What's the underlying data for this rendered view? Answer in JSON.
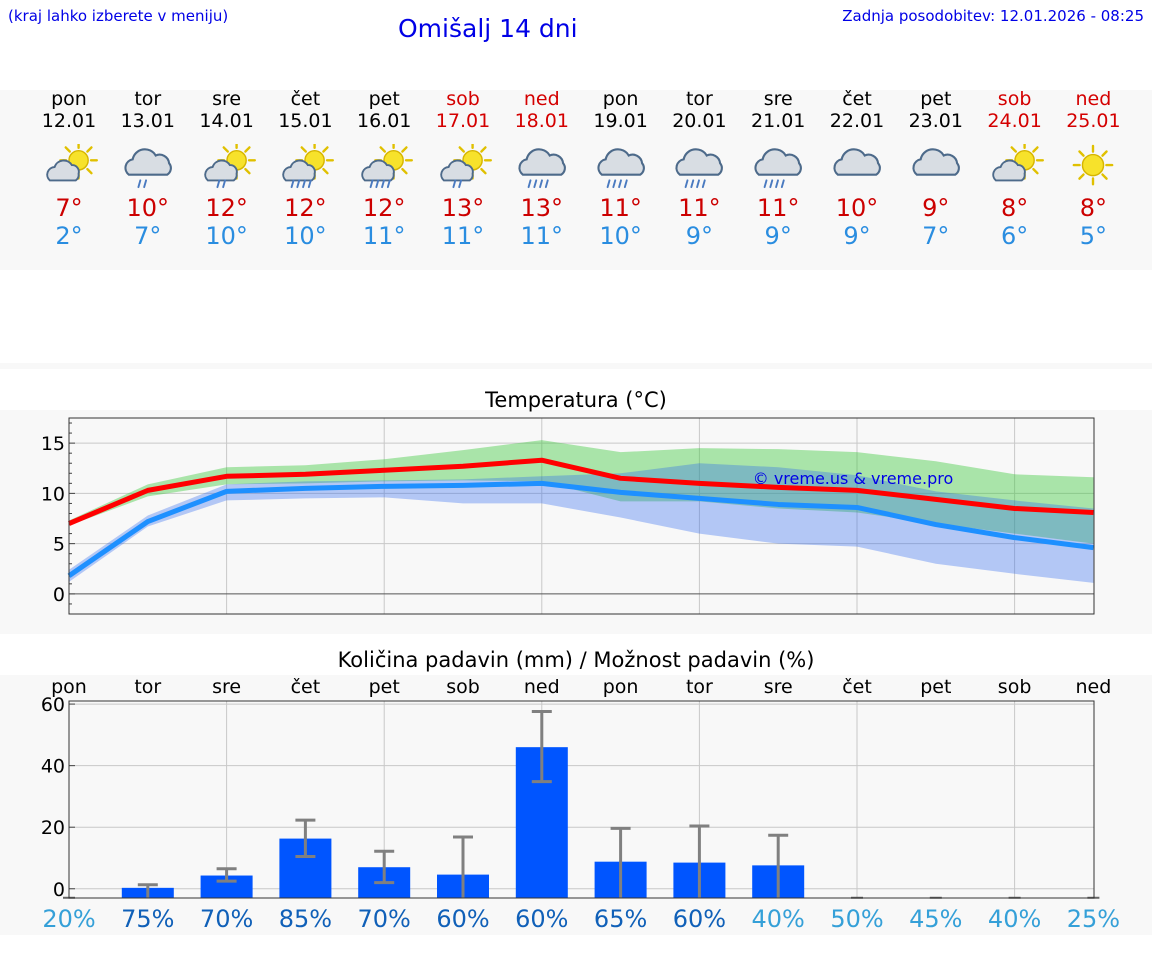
{
  "header": {
    "hint": "(kraj lahko izberete v meniju)",
    "title": "Omišalj 14 dni",
    "updated": "Zadnja posodobitev: 12.01.2026 - 08:25"
  },
  "colors": {
    "link": "#0000e6",
    "max_temp": "#cc0000",
    "min_temp": "#2a8de0",
    "weekend": "#d40000",
    "bar": "#0055ff",
    "red_line": "#ff0000",
    "blue_line": "#1e90ff"
  },
  "days": [
    {
      "name": "pon",
      "date": "12.01",
      "weekend": false,
      "icon": "sun-cloud-icon",
      "max": "7°",
      "min": "2°"
    },
    {
      "name": "tor",
      "date": "13.01",
      "weekend": false,
      "icon": "cloud-rain-icon",
      "max": "10°",
      "min": "7°"
    },
    {
      "name": "sre",
      "date": "14.01",
      "weekend": false,
      "icon": "sun-cloud-rain-icon",
      "max": "12°",
      "min": "10°"
    },
    {
      "name": "čet",
      "date": "15.01",
      "weekend": false,
      "icon": "sun-cloud-heavy-rain-icon",
      "max": "12°",
      "min": "10°"
    },
    {
      "name": "pet",
      "date": "16.01",
      "weekend": false,
      "icon": "sun-cloud-heavy-rain-icon",
      "max": "12°",
      "min": "11°"
    },
    {
      "name": "sob",
      "date": "17.01",
      "weekend": true,
      "icon": "sun-cloud-rain-icon",
      "max": "13°",
      "min": "11°"
    },
    {
      "name": "ned",
      "date": "18.01",
      "weekend": true,
      "icon": "cloud-heavy-rain-icon",
      "max": "13°",
      "min": "11°"
    },
    {
      "name": "pon",
      "date": "19.01",
      "weekend": false,
      "icon": "cloud-heavy-rain-icon",
      "max": "11°",
      "min": "10°"
    },
    {
      "name": "tor",
      "date": "20.01",
      "weekend": false,
      "icon": "cloud-heavy-rain-icon",
      "max": "11°",
      "min": "9°"
    },
    {
      "name": "sre",
      "date": "21.01",
      "weekend": false,
      "icon": "cloud-heavy-rain-icon",
      "max": "11°",
      "min": "9°"
    },
    {
      "name": "čet",
      "date": "22.01",
      "weekend": false,
      "icon": "cloud-icon",
      "max": "10°",
      "min": "9°"
    },
    {
      "name": "pet",
      "date": "23.01",
      "weekend": false,
      "icon": "cloud-icon",
      "max": "9°",
      "min": "7°"
    },
    {
      "name": "sob",
      "date": "24.01",
      "weekend": true,
      "icon": "sun-cloud-icon",
      "max": "8°",
      "min": "6°"
    },
    {
      "name": "ned",
      "date": "25.01",
      "weekend": true,
      "icon": "sun-icon",
      "max": "8°",
      "min": "5°"
    }
  ],
  "chart_data": [
    {
      "type": "line",
      "title": "Temperatura (°C)",
      "ylim": [
        -2,
        17.5
      ],
      "yticks": [
        "0",
        "5",
        "10",
        "15"
      ],
      "x": [
        0,
        1,
        2,
        3,
        4,
        5,
        6,
        7,
        8,
        9,
        10,
        11,
        12,
        13
      ],
      "watermark": "© vreme.us & vreme.pro",
      "series": [
        {
          "name": "max",
          "values": [
            7,
            10.3,
            11.7,
            11.9,
            12.3,
            12.7,
            13.3,
            11.5,
            11.0,
            10.6,
            10.3,
            9.4,
            8.5,
            8.1
          ]
        },
        {
          "name": "max_lower",
          "values": [
            6.8,
            9.7,
            10.9,
            11.0,
            11.2,
            11.3,
            11.2,
            9.2,
            9.2,
            8.5,
            8.1,
            7.0,
            6.0,
            5.0
          ]
        },
        {
          "name": "max_upper",
          "values": [
            7.3,
            10.9,
            12.6,
            12.8,
            13.4,
            14.3,
            15.3,
            14.1,
            14.5,
            14.4,
            14.1,
            13.2,
            11.9,
            11.6
          ]
        },
        {
          "name": "min",
          "values": [
            1.8,
            7.2,
            10.2,
            10.5,
            10.7,
            10.8,
            11.0,
            10.1,
            9.5,
            8.9,
            8.6,
            6.9,
            5.6,
            4.6
          ]
        },
        {
          "name": "min_lower",
          "values": [
            1.2,
            6.7,
            9.3,
            9.5,
            9.6,
            9.0,
            9.0,
            7.6,
            6.0,
            5.0,
            4.7,
            3.0,
            2.0,
            1.1
          ]
        },
        {
          "name": "min_upper",
          "values": [
            2.4,
            7.8,
            10.9,
            11.2,
            11.3,
            11.4,
            11.7,
            12.0,
            13.0,
            12.6,
            11.8,
            10.2,
            9.3,
            8.5
          ]
        }
      ]
    },
    {
      "type": "bar",
      "title": "Količina padavin (mm) / Možnost padavin (%)",
      "ylim": [
        -3,
        61
      ],
      "yticks": [
        "0",
        "20",
        "40",
        "60"
      ],
      "categories": [
        "pon",
        "tor",
        "sre",
        "čet",
        "pet",
        "sob",
        "ned",
        "pon",
        "tor",
        "sre",
        "čet",
        "pet",
        "sob",
        "ned"
      ],
      "values": [
        0,
        0.3,
        4.3,
        16.3,
        7,
        4.6,
        46,
        8.8,
        8.5,
        7.6,
        0,
        0,
        0,
        0
      ],
      "error_low": [
        0,
        0,
        2.5,
        10.5,
        2,
        0,
        34.8,
        0,
        0,
        0,
        0,
        0,
        0,
        0
      ],
      "error_high": [
        0,
        1.3,
        6.5,
        22.3,
        12.2,
        16.8,
        57.6,
        19.6,
        20.4,
        17.4,
        0,
        0,
        0,
        0
      ],
      "chance": [
        "20%",
        "75%",
        "70%",
        "85%",
        "70%",
        "60%",
        "60%",
        "65%",
        "60%",
        "40%",
        "50%",
        "45%",
        "40%",
        "25%"
      ]
    }
  ]
}
